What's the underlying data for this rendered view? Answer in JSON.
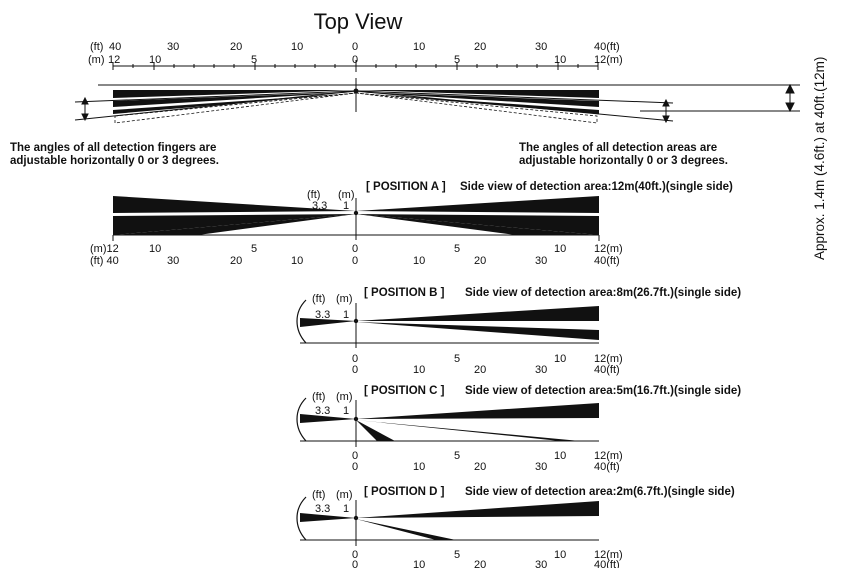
{
  "title": "Top View",
  "side_note": "Approx. 1.4m (4.6ft.) at 40ft.(12m)",
  "top_view": {
    "unit_left_ft": "(ft)",
    "unit_left_m": "(m)",
    "unit_right_ft": "40(ft)",
    "unit_right_m": "12(m)",
    "ft_ticks": [
      "40",
      "30",
      "20",
      "10",
      "0",
      "10",
      "20",
      "30"
    ],
    "m_ticks": [
      "12",
      "10",
      "5",
      "0",
      "5",
      "10"
    ],
    "note_left": [
      "The angles of all detection fingers are",
      "adjustable horizontally 0 or 3 degrees."
    ],
    "note_right": [
      "The angles of all detection areas are",
      "adjustable horizontally 0 or 3 degrees."
    ]
  },
  "positions": [
    {
      "id": "A",
      "label": "[ POSITION A ]",
      "caption": "Side view of detection area:12m(40ft.)(single side)",
      "height_ft": "3.3",
      "height_m": "1",
      "unit_ft": "(ft)",
      "unit_m": "(m)"
    },
    {
      "id": "B",
      "label": "[ POSITION B ]",
      "caption": "Side view of detection area:8m(26.7ft.)(single side)",
      "height_ft": "3.3",
      "height_m": "1",
      "unit_ft": "(ft)",
      "unit_m": "(m)"
    },
    {
      "id": "C",
      "label": "[ POSITION C ]",
      "caption": "Side view of detection area:5m(16.7ft.)(single side)",
      "height_ft": "3.3",
      "height_m": "1",
      "unit_ft": "(ft)",
      "unit_m": "(m)"
    },
    {
      "id": "D",
      "label": "[ POSITION D ]",
      "caption": "Side view of detection area:2m(6.7ft.)(single side)",
      "height_ft": "3.3",
      "height_m": "1",
      "unit_ft": "(ft)",
      "unit_m": "(m)"
    }
  ],
  "axis_a": {
    "m_left": [
      "(m)12",
      "10",
      "5",
      "0",
      "5",
      "10",
      "12(m)"
    ],
    "ft_left": [
      "(ft) 40",
      "30",
      "20",
      "10",
      "0",
      "10",
      "20",
      "30",
      "40(ft)"
    ]
  },
  "axis_half": {
    "m": [
      "0",
      "5",
      "10",
      "12(m)"
    ],
    "ft": [
      "0",
      "10",
      "20",
      "30",
      "40(ft)"
    ]
  }
}
